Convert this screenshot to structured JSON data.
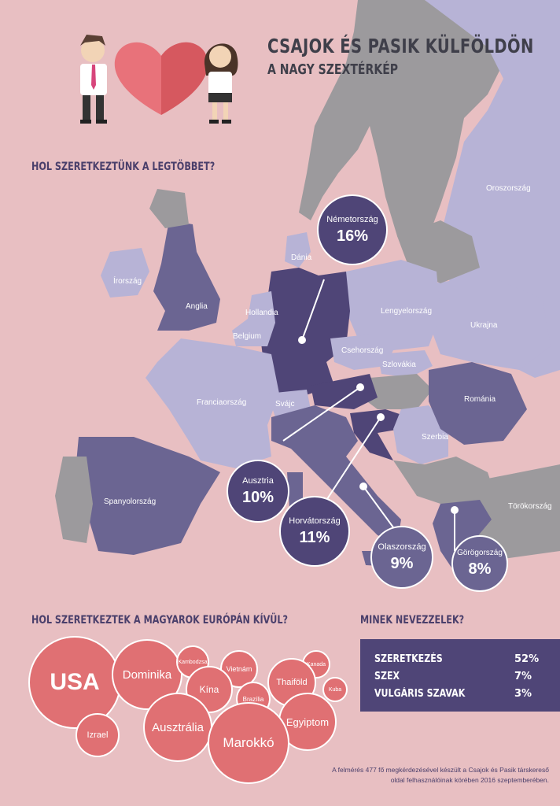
{
  "header": {
    "title": "CSAJOK ÉS PASIK KÜLFÖLDÖN",
    "subtitle": "A NAGY SZEXTÉRKÉP"
  },
  "illustration": {
    "icons": [
      "man-icon",
      "heart-puzzle-icon",
      "woman-icon"
    ]
  },
  "europe": {
    "heading": "HOL SZERETKEZTÜNK A LEGTÖBBET?",
    "countries": {
      "oroszorszag": "Oroszország",
      "irorszag": "Írország",
      "anglia": "Anglia",
      "dania": "Dánia",
      "hollandia": "Hollandia",
      "belgium": "Belgium",
      "lengyelorszag": "Lengyelország",
      "ukrajna": "Ukrajna",
      "csehorszag": "Csehország",
      "szlovakia": "Szlovákia",
      "franciaorszag": "Franciaország",
      "svajc": "Svájc",
      "romania": "Románia",
      "szerbia": "Szerbia",
      "torokorszag": "Törökország",
      "spanyolorszag": "Spanyolország"
    },
    "bubbles": {
      "nemetorszag": {
        "name": "Németország",
        "value": "16%"
      },
      "ausztria": {
        "name": "Ausztria",
        "value": "10%"
      },
      "horvatorszag": {
        "name": "Horvátország",
        "value": "11%"
      },
      "olaszorszag": {
        "name": "Olaszország",
        "value": "9%"
      },
      "gorogorszag": {
        "name": "Görögország",
        "value": "8%"
      }
    }
  },
  "outside": {
    "heading": "HOL SZERETKEZTEK A MAGYAROK EURÓPÁN KÍVÜL?",
    "places": {
      "usa": "USA",
      "dominika": "Dominika",
      "kambodzsa": "Kambodzsa",
      "vietnam": "Vietnám",
      "kanada": "Kanada",
      "kina": "Kína",
      "thaifold": "Thaiföld",
      "brazilia": "Brazília",
      "kuba": "Kuba",
      "izrael": "Izrael",
      "ausztralia": "Ausztrália",
      "egyiptom": "Egyiptom",
      "marokko": "Marokkó"
    }
  },
  "names": {
    "heading": "MINEK NEVEZZELEK?",
    "rows": [
      {
        "label": "SZERETKEZÉS",
        "value": "52%"
      },
      {
        "label": "SZEX",
        "value": "7%"
      },
      {
        "label": "VULGÁRIS SZAVAK",
        "value": "3%"
      }
    ]
  },
  "footnote": {
    "line1": "A felmérés 477 fő megkérdezésével készült a Csajok és Pasik társkereső",
    "line2": "oldal felhasználóinak körében 2016 szeptemberében."
  },
  "colors": {
    "background": "#e8bfc2",
    "dark_purple": "#4f4577",
    "mid_purple": "#6b6592",
    "light_purple": "#b7b3d6",
    "grey": "#9c9a9d",
    "coral": "#e07073"
  }
}
